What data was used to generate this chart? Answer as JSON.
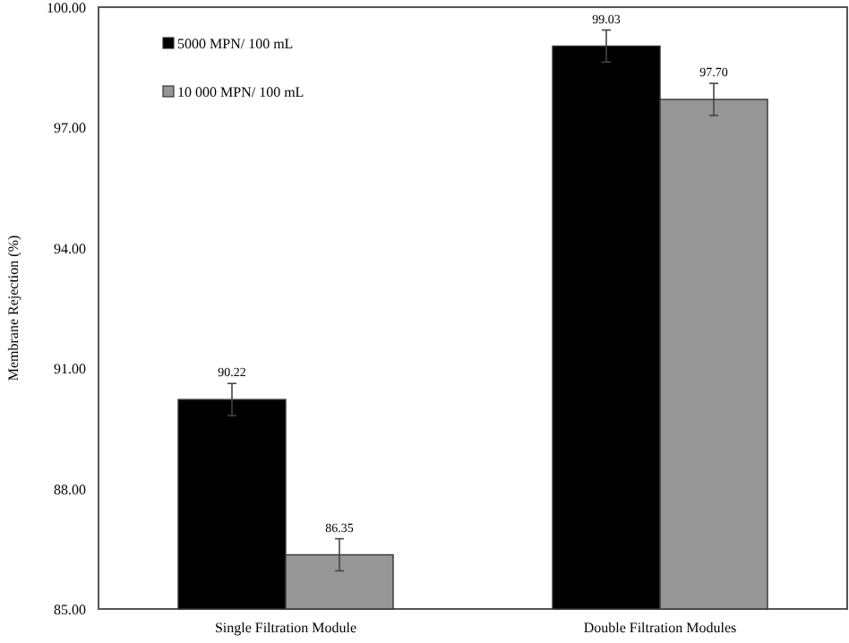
{
  "chart_data": {
    "type": "bar",
    "ylabel": "Membrane Rejection (%)",
    "categories": [
      "Single Filtration Module",
      "Double Filtration Modules"
    ],
    "series": [
      {
        "name": "5000 MPN/ 100 mL",
        "color": "#000000",
        "values": [
          90.22,
          99.03
        ],
        "errors": [
          0.4,
          0.4
        ]
      },
      {
        "name": "10 000 MPN/ 100 mL",
        "color": "#969696",
        "values": [
          86.35,
          97.7
        ],
        "errors": [
          0.4,
          0.4
        ]
      }
    ],
    "value_labels": [
      [
        "90.22",
        "99.03"
      ],
      [
        "86.35",
        "97.70"
      ]
    ],
    "ylim": [
      85,
      100
    ],
    "yticks": [
      {
        "value": 85,
        "label": "85.00"
      },
      {
        "value": 88,
        "label": "88.00"
      },
      {
        "value": 91,
        "label": "91.00"
      },
      {
        "value": 94,
        "label": "94.00"
      },
      {
        "value": 97,
        "label": "97.00"
      },
      {
        "value": 100,
        "label": "100.00"
      }
    ],
    "grid": false,
    "legend": "top left"
  }
}
